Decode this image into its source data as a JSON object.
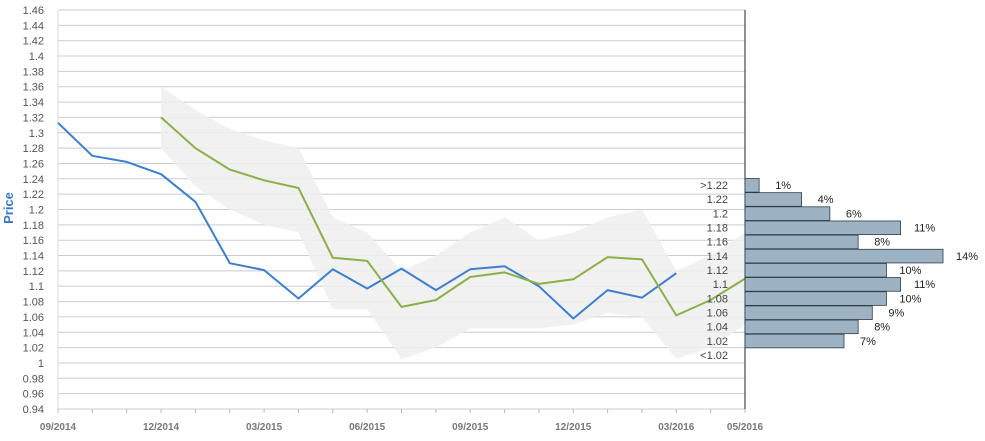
{
  "chart_data": {
    "type": "line",
    "title": "",
    "ylabel": "Price",
    "xlabel": "",
    "ylim": [
      0.94,
      1.46
    ],
    "y_ticks": [
      "1.46",
      "1.44",
      "1.42",
      "1.4",
      "1.38",
      "1.36",
      "1.34",
      "1.32",
      "1.3",
      "1.28",
      "1.26",
      "1.24",
      "1.22",
      "1.2",
      "1.18",
      "1.16",
      "1.14",
      "1.12",
      "1.1",
      "1.08",
      "1.06",
      "1.04",
      "1.02",
      "1",
      "0.98",
      "0.96",
      "0.94"
    ],
    "x_ticks": [
      "09/2014",
      "12/2014",
      "03/2015",
      "06/2015",
      "09/2015",
      "12/2015",
      "03/2016",
      "05/2016"
    ],
    "grid": true,
    "series": [
      {
        "color": "#3d7fc9",
        "x": [
          "2014-09",
          "2014-10",
          "2014-11",
          "2014-12",
          "2015-01",
          "2015-02",
          "2015-03",
          "2015-04",
          "2015-05",
          "2015-06",
          "2015-07",
          "2015-08",
          "2015-09",
          "2015-10",
          "2015-11",
          "2015-12",
          "2016-01",
          "2016-02",
          "2016-03"
        ],
        "values": [
          1.313,
          1.27,
          1.262,
          1.246,
          1.21,
          1.13,
          1.121,
          1.084,
          1.122,
          1.097,
          1.123,
          1.095,
          1.122,
          1.126,
          1.1,
          1.058,
          1.095,
          1.085,
          1.117
        ]
      },
      {
        "color": "#8bb04a",
        "x": [
          "2014-12",
          "2015-01",
          "2015-02",
          "2015-03",
          "2015-04",
          "2015-05",
          "2015-06",
          "2015-07",
          "2015-08",
          "2015-09",
          "2015-10",
          "2015-11",
          "2015-12",
          "2016-01",
          "2016-02",
          "2016-03",
          "2016-04",
          "2016-05"
        ],
        "values": [
          1.32,
          1.28,
          1.252,
          1.238,
          1.228,
          1.137,
          1.133,
          1.073,
          1.082,
          1.112,
          1.118,
          1.103,
          1.109,
          1.138,
          1.135,
          1.062,
          1.082,
          1.11
        ]
      }
    ],
    "band": {
      "color": "#eeeeee",
      "x": [
        "2014-12",
        "2015-01",
        "2015-02",
        "2015-03",
        "2015-04",
        "2015-05",
        "2015-06",
        "2015-07",
        "2015-08",
        "2015-09",
        "2015-10",
        "2015-11",
        "2015-12",
        "2016-01",
        "2016-02",
        "2016-03",
        "2016-04",
        "2016-05"
      ],
      "upper": [
        1.36,
        1.33,
        1.305,
        1.29,
        1.28,
        1.19,
        1.17,
        1.12,
        1.14,
        1.17,
        1.19,
        1.16,
        1.17,
        1.19,
        1.2,
        1.12,
        1.14,
        1.17
      ],
      "lower": [
        1.28,
        1.23,
        1.2,
        1.18,
        1.17,
        1.07,
        1.07,
        1.005,
        1.02,
        1.045,
        1.045,
        1.045,
        1.05,
        1.065,
        1.06,
        1.005,
        1.02,
        1.05
      ]
    },
    "histogram": {
      "color": "#9db2c2",
      "categories": [
        ">1.22",
        "1.22",
        "1.2",
        "1.18",
        "1.16",
        "1.14",
        "1.12",
        "1.1",
        "1.08",
        "1.06",
        "1.04",
        "1.02",
        "<1.02"
      ],
      "labels": [
        "1%",
        "4%",
        "6%",
        "11%",
        "8%",
        "14%",
        "10%",
        "11%",
        "10%",
        "9%",
        "8%",
        "7%",
        ""
      ],
      "values": [
        1,
        4,
        6,
        11,
        8,
        14,
        10,
        11,
        10,
        9,
        8,
        7,
        0
      ]
    }
  }
}
